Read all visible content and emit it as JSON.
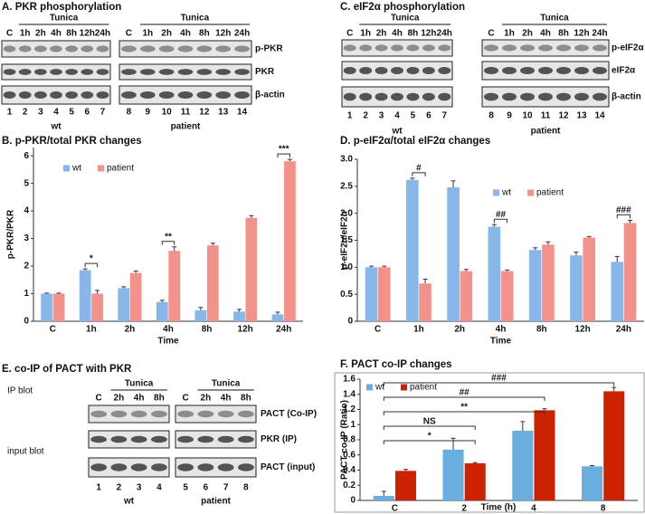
{
  "blots": [
    {
      "title": "A. PKR phosphorylation",
      "groups": [
        {
          "name": "wt",
          "treatment": "Tunica",
          "lanes": [
            "C",
            "1h",
            "2h",
            "4h",
            "8h",
            "12h",
            "24h"
          ],
          "numbers": [
            1,
            2,
            3,
            4,
            5,
            6,
            7
          ]
        },
        {
          "name": "patient",
          "treatment": "Tunica",
          "lanes": [
            "C",
            "1h",
            "2h",
            "4h",
            "8h",
            "12h",
            "24h"
          ],
          "numbers": [
            8,
            9,
            10,
            11,
            12,
            13,
            14
          ]
        }
      ],
      "rows": [
        "p-PKR",
        "PKR",
        "β-actin"
      ]
    },
    {
      "title": "C. eIF2α phosphorylation",
      "groups": [
        {
          "name": "wt",
          "treatment": "Tunica",
          "lanes": [
            "C",
            "1h",
            "2h",
            "4h",
            "8h",
            "12h",
            "24h"
          ],
          "numbers": [
            1,
            2,
            3,
            4,
            5,
            6,
            7
          ]
        },
        {
          "name": "patient",
          "treatment": "Tunica",
          "lanes": [
            "C",
            "1h",
            "2h",
            "4h",
            "8h",
            "12h",
            "24h"
          ],
          "numbers": [
            8,
            9,
            10,
            11,
            12,
            13,
            14
          ]
        }
      ],
      "rows": [
        "p-eIF2α",
        "eIF2α",
        "β-actin"
      ]
    },
    {
      "title": "E. co-IP of PACT with PKR",
      "sections": [
        "IP blot",
        "input blot"
      ],
      "groups": [
        {
          "name": "wt",
          "treatment": "Tunica",
          "lanes": [
            "C",
            "2h",
            "4h",
            "8h"
          ],
          "numbers": [
            1,
            2,
            3,
            4
          ]
        },
        {
          "name": "patient",
          "treatment": "Tunica",
          "lanes": [
            "C",
            "2h",
            "4h",
            "8h"
          ],
          "numbers": [
            5,
            6,
            7,
            8
          ]
        }
      ],
      "rows": [
        "PACT (Co-IP)",
        "PKR (IP)",
        "PACT (input)"
      ]
    }
  ],
  "chart_data": [
    {
      "type": "bar",
      "title": "B. p-PKR/total PKR changes",
      "ylabel": "p-PKR/PKR",
      "xlabel": "Time",
      "categories": [
        "C",
        "1h",
        "2h",
        "4h",
        "8h",
        "12h",
        "24h"
      ],
      "series": [
        {
          "name": "wt",
          "color": "#86b7e8",
          "values": [
            1,
            1.85,
            1.2,
            0.7,
            0.4,
            0.35,
            0.25
          ],
          "errors": [
            0.02,
            0.05,
            0.05,
            0.06,
            0.1,
            0.08,
            0.08
          ]
        },
        {
          "name": "patient",
          "color": "#f3928a",
          "values": [
            1,
            1.0,
            1.75,
            2.55,
            2.75,
            3.75,
            5.8
          ],
          "errors": [
            0.02,
            0.12,
            0.07,
            0.15,
            0.08,
            0.08,
            0.07
          ]
        }
      ],
      "ylim": [
        0,
        6.3
      ],
      "yticks": [
        0,
        1,
        2,
        3,
        4,
        5,
        6
      ],
      "annotations": [
        {
          "text": "*",
          "category": "1h"
        },
        {
          "text": "**",
          "category": "4h"
        },
        {
          "text": "***",
          "category": "24h"
        }
      ]
    },
    {
      "type": "bar",
      "title": "D. p-eIF2α/total eIF2α changes",
      "ylabel": "p-eIF2α/eIF2α",
      "xlabel": "Time",
      "categories": [
        "C",
        "1h",
        "2h",
        "4h",
        "8h",
        "12h",
        "24h"
      ],
      "series": [
        {
          "name": "wt",
          "color": "#86b7e8",
          "values": [
            1,
            2.62,
            2.48,
            1.75,
            1.32,
            1.22,
            1.1
          ],
          "errors": [
            0.02,
            0.03,
            0.12,
            0.04,
            0.04,
            0.06,
            0.1
          ]
        },
        {
          "name": "patient",
          "color": "#f3928a",
          "values": [
            1,
            0.7,
            0.93,
            0.93,
            1.42,
            1.55,
            1.82
          ],
          "errors": [
            0.02,
            0.08,
            0.03,
            0.02,
            0.05,
            0.02,
            0.05
          ]
        }
      ],
      "ylim": [
        0,
        3
      ],
      "yticks": [
        0,
        0.5,
        {
          "value": 1,
          "label": "1.0"
        },
        1.5,
        {
          "value": 2,
          "label": "2.0"
        },
        2.5,
        {
          "value": 3,
          "label": "3.0"
        }
      ],
      "annotations": [
        {
          "text": "#",
          "category": "1h"
        },
        {
          "text": "##",
          "category": "4h"
        },
        {
          "text": "###",
          "category": "24h"
        }
      ]
    },
    {
      "type": "bar",
      "title": "F. PACT co-IP changes",
      "ylabel": "PACT co-IP (Ratio)",
      "xlabel": "Time (h)",
      "categories": [
        "C",
        "2",
        "4",
        "8"
      ],
      "series": [
        {
          "name": "wt",
          "color": "#6aaee0",
          "values": [
            0.06,
            0.67,
            0.92,
            0.45
          ],
          "errors": [
            0.06,
            0.15,
            0.12,
            0.01
          ]
        },
        {
          "name": "patient",
          "color": "#cc2200",
          "values": [
            0.39,
            0.49,
            1.19,
            1.44
          ],
          "errors": [
            0.02,
            0.01,
            0.02,
            0.05
          ]
        }
      ],
      "ylim": [
        0,
        1.6
      ],
      "yticks": [
        0,
        0.2,
        0.4,
        0.6,
        0.8,
        1,
        1.2,
        1.4,
        1.6
      ],
      "annotations": [
        {
          "text": "*",
          "from": "C",
          "to": "2"
        },
        {
          "text": "NS",
          "from": "C",
          "to": "2"
        },
        {
          "text": "**",
          "from": "C",
          "to": "4"
        },
        {
          "text": "##",
          "from": "C",
          "to": "4"
        },
        {
          "text": "###",
          "from": "C",
          "to": "8"
        }
      ]
    }
  ]
}
